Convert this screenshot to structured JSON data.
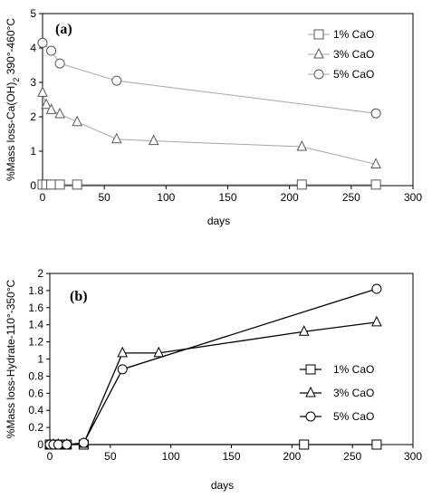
{
  "chart_data": [
    {
      "type": "line",
      "title": "(a)",
      "xlabel": "days",
      "ylabel_main": "%Mass loss-Ca(OH)",
      "ylabel_sub": "2",
      "ylabel_tail": " 390°-460°C",
      "xlim": [
        0,
        300
      ],
      "ylim": [
        0,
        5
      ],
      "x_ticks": [
        0,
        50,
        100,
        150,
        200,
        250,
        300
      ],
      "y_ticks": [
        0,
        1,
        2,
        3,
        4,
        5
      ],
      "grid": false,
      "legend_position": "top-right",
      "series": [
        {
          "name": "1% CaO",
          "marker": "square",
          "color": "#a6a6a6",
          "x": [
            0,
            3,
            7,
            14,
            28,
            210,
            270
          ],
          "y": [
            0.03,
            0.03,
            0.03,
            0.03,
            0.03,
            0.03,
            0.03
          ]
        },
        {
          "name": "3% CaO",
          "marker": "triangle",
          "color": "#a6a6a6",
          "x": [
            0,
            3,
            7,
            14,
            28,
            60,
            90,
            210,
            270
          ],
          "y": [
            2.7,
            2.35,
            2.2,
            2.08,
            1.85,
            1.35,
            1.3,
            1.13,
            0.62
          ]
        },
        {
          "name": "5% CaO",
          "marker": "circle",
          "color": "#a6a6a6",
          "x": [
            0,
            7,
            14,
            60,
            270
          ],
          "y": [
            4.15,
            3.92,
            3.55,
            3.05,
            2.1
          ]
        }
      ]
    },
    {
      "type": "line",
      "title": "(b)",
      "xlabel": "days",
      "ylabel_main": "%Mass loss-Hydrate-110°-350°C",
      "ylabel_sub": "",
      "ylabel_tail": "",
      "xlim": [
        0,
        300
      ],
      "ylim": [
        0,
        2
      ],
      "x_ticks": [
        0,
        50,
        100,
        150,
        200,
        250,
        300
      ],
      "y_ticks": [
        "0",
        "0.2",
        "0.4",
        "0.6",
        "0.8",
        "1",
        "1.2",
        "1.4",
        "1.6",
        "1.8",
        "2"
      ],
      "grid": false,
      "legend_position": "center-right",
      "series": [
        {
          "name": "1% CaO",
          "marker": "square",
          "color": "#000000",
          "x": [
            0,
            3,
            7,
            14,
            28,
            210,
            270
          ],
          "y": [
            0,
            0,
            0,
            0,
            0,
            0,
            0
          ]
        },
        {
          "name": "3% CaO",
          "marker": "triangle",
          "color": "#000000",
          "x": [
            0,
            3,
            7,
            14,
            28,
            60,
            90,
            210,
            270
          ],
          "y": [
            0,
            0,
            0,
            0,
            0.01,
            1.07,
            1.07,
            1.32,
            1.43
          ]
        },
        {
          "name": "5% CaO",
          "marker": "circle",
          "color": "#000000",
          "x": [
            0,
            3,
            7,
            14,
            28,
            60,
            270
          ],
          "y": [
            0,
            0,
            0,
            0,
            0.02,
            0.88,
            1.82
          ]
        }
      ]
    }
  ]
}
